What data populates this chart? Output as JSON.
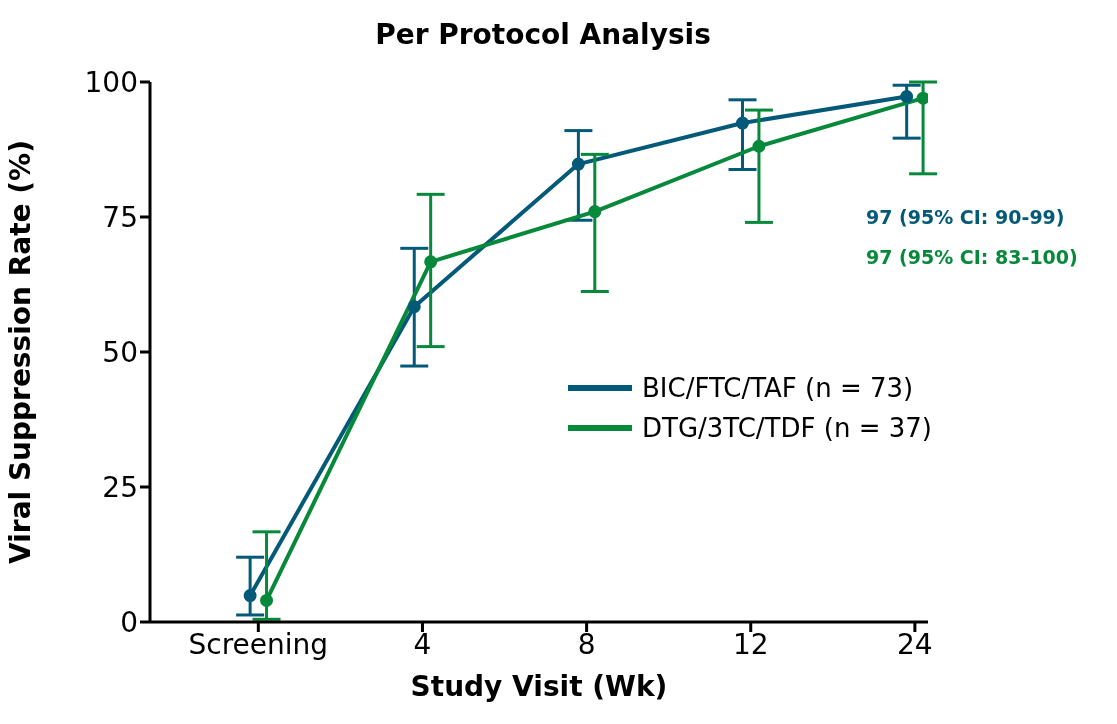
{
  "chart_data": {
    "type": "line",
    "title": "Per Protocol Analysis",
    "xlabel": "Study Visit (Wk)",
    "ylabel": "Viral Suppression Rate (%)",
    "categories": [
      "Screening",
      "4",
      "8",
      "12",
      "24"
    ],
    "series": [
      {
        "name": "BIC/FTC/TAF (n = 73)",
        "color": "#035a78",
        "values": [
          4.9,
          58.4,
          84.8,
          92.4,
          97.3
        ],
        "errors": [
          [
            1.3,
            12
          ],
          [
            47.4,
            69.2
          ],
          [
            74.4,
            91
          ],
          [
            83.8,
            96.7
          ],
          [
            89.6,
            99.4
          ]
        ]
      },
      {
        "name": "DTG/3TC/TDF (n = 37)",
        "color": "#06893a",
        "values": [
          4,
          66.7,
          76,
          88.1,
          97
        ],
        "errors": [
          [
            0.5,
            16.7
          ],
          [
            51,
            79.2
          ],
          [
            61.2,
            86.6
          ],
          [
            74,
            94.8
          ],
          [
            83,
            100
          ]
        ]
      }
    ],
    "ylim": [
      0,
      100
    ],
    "yticks": [
      0,
      25,
      50,
      75,
      100
    ],
    "grid": false,
    "legend": "right",
    "marker": "circle",
    "line_style": "solid",
    "annotations": [
      "97 (95% CI: 90-99)",
      "97 (95% CI: 83-100)"
    ]
  }
}
